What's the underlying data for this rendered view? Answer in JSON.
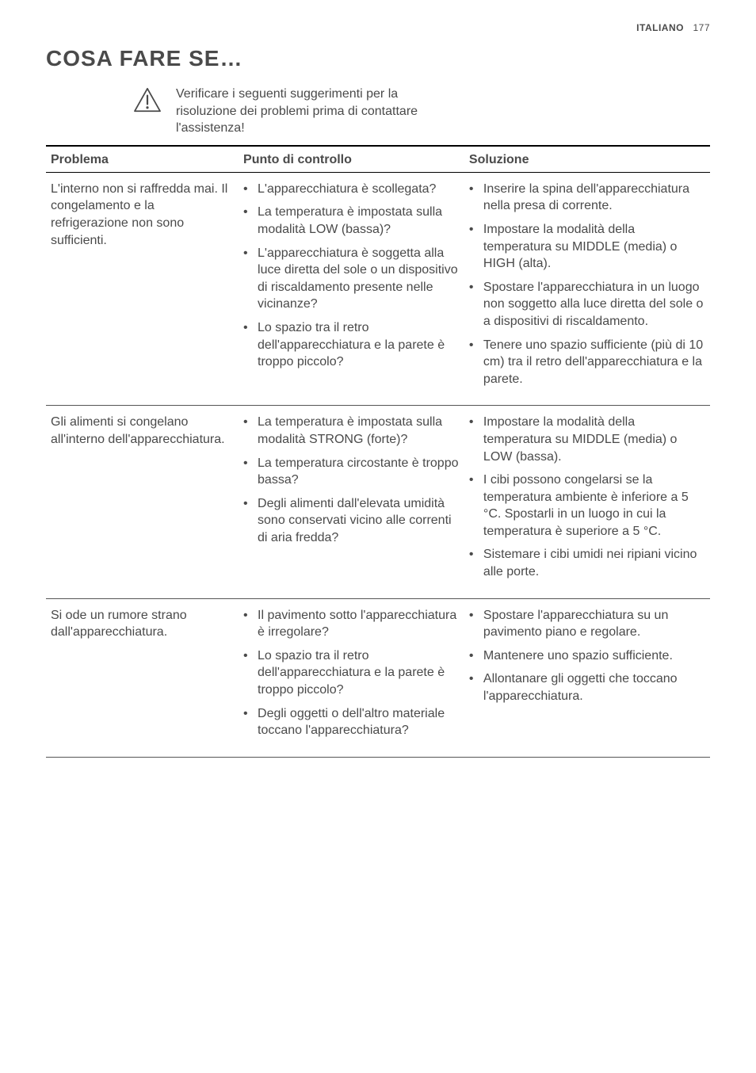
{
  "header": {
    "language": "ITALIANO",
    "page_number": "177"
  },
  "title": "COSA FARE SE…",
  "warning": {
    "icon_name": "warning-triangle-icon",
    "text": "Verificare i seguenti suggerimenti per la risoluzione dei problemi prima di contattare l'assistenza!"
  },
  "table": {
    "headers": {
      "problem": "Problema",
      "checkpoint": "Punto di controllo",
      "solution": "Soluzione"
    },
    "rows": [
      {
        "problem": "L'interno non si raffredda mai. Il congelamento e la refrigerazione non sono sufficienti.",
        "checkpoints": [
          "L'apparecchiatura è scollegata?",
          "La temperatura è impostata sulla modalità LOW (bassa)?",
          "L'apparecchiatura è soggetta alla luce diretta del sole o un dispositivo di riscaldamento presente nelle vicinanze?",
          "Lo spazio tra il retro dell'apparecchiatura e la parete è troppo piccolo?"
        ],
        "solutions": [
          "Inserire la spina dell'apparecchiatura nella presa di corrente.",
          "Impostare la modalità della temperatura su MIDDLE (media) o HIGH (alta).",
          "Spostare l'apparecchiatura in un luogo non soggetto alla luce diretta del sole o a dispositivi di riscaldamento.",
          "Tenere uno spazio sufficiente (più di 10 cm) tra il retro dell'apparecchiatura e la parete."
        ]
      },
      {
        "problem": "Gli alimenti si congelano all'interno dell'apparecchiatura.",
        "checkpoints": [
          "La temperatura è impostata sulla modalità STRONG (forte)?",
          "La temperatura circostante è troppo bassa?",
          "Degli alimenti dall'elevata umidità sono conservati vicino alle correnti di aria fredda?"
        ],
        "solutions": [
          "Impostare la modalità della temperatura su MIDDLE (media) o LOW (bassa).",
          "I cibi possono congelarsi se la temperatura ambiente è inferiore a 5 °C. Spostarli in un luogo in cui la temperatura è superiore a 5 °C.",
          "Sistemare i cibi umidi nei ripiani vicino alle porte."
        ]
      },
      {
        "problem": "Si ode un rumore strano dall'apparecchiatura.",
        "checkpoints": [
          "Il pavimento sotto l'apparecchiatura è irregolare?",
          "Lo spazio tra il retro dell'apparecchiatura e la parete è troppo piccolo?",
          "Degli oggetti o dell'altro materiale toccano l'apparecchiatura?"
        ],
        "solutions": [
          "Spostare l'apparecchiatura su un pavimento piano e regolare.",
          "Mantenere uno spazio sufficiente.",
          "Allontanare gli oggetti che toccano l'apparecchiatura."
        ]
      }
    ]
  },
  "style": {
    "text_color": "#4a4a4a",
    "border_color_heavy": "#000000",
    "border_color_light": "#555555",
    "background_color": "#ffffff",
    "title_fontsize": 28,
    "body_fontsize": 16,
    "header_fontsize": 12
  }
}
